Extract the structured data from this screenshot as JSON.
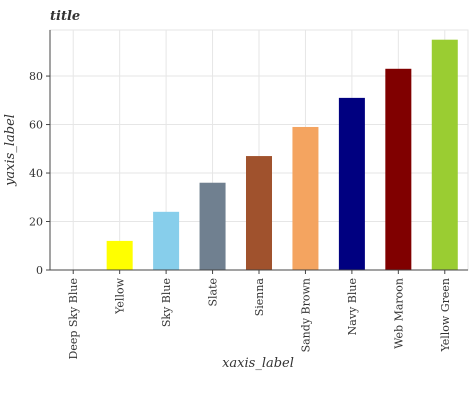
{
  "chart_data": {
    "type": "bar",
    "title": "title",
    "xlabel": "xaxis_label",
    "ylabel": "yaxis_label",
    "categories": [
      "Deep Sky Blue",
      "Yellow",
      "Sky Blue",
      "Slate",
      "Sienna",
      "Sandy Brown",
      "Navy Blue",
      "Web Maroon",
      "Yellow Green"
    ],
    "values": [
      0,
      12,
      24,
      36,
      47,
      59,
      71,
      83,
      95
    ],
    "colors": [
      "#00bfff",
      "#ffff00",
      "#87ceeb",
      "#708090",
      "#a0522d",
      "#f4a460",
      "#000080",
      "#800000",
      "#9acd32"
    ],
    "ylim": [
      0,
      99
    ],
    "yticks": [
      0,
      20,
      40,
      60,
      80
    ],
    "grid": true,
    "legend": "none"
  }
}
